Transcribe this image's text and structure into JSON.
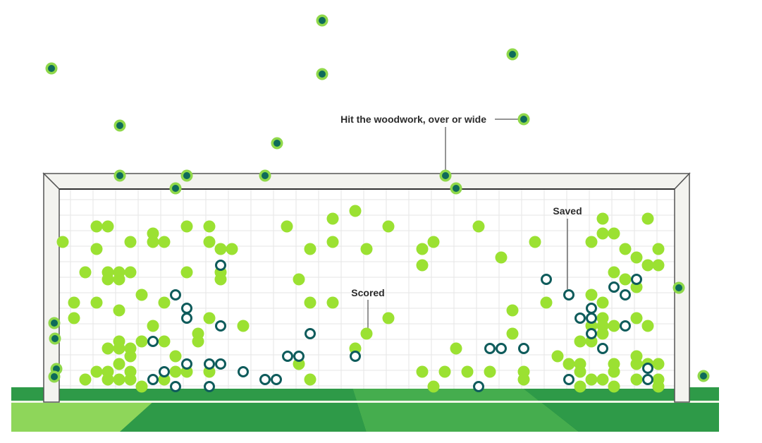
{
  "chart_data": {
    "type": "scatter",
    "colors": {
      "scored": "#9be132",
      "saved_stroke": "#0e5b5b",
      "missed_fill": "#0e6b5a",
      "missed_ring": "#8fd84a",
      "grass_light": "#8ed65a",
      "grass_dark": "#2e9a48",
      "net": "#e6e6e6",
      "post": "#f3f3ef",
      "annotation": "#2b2b2b"
    },
    "annotations": {
      "woodwork": "Hit the woodwork, over or wide",
      "saved": "Saved",
      "scored": "Scored"
    },
    "series": [
      {
        "outcome": "scored",
        "points": [
          [
            89,
            343
          ],
          [
            137,
            321
          ],
          [
            153,
            321
          ],
          [
            137,
            353
          ],
          [
            185,
            343
          ],
          [
            217,
            331
          ],
          [
            217,
            343
          ],
          [
            233,
            343
          ],
          [
            265,
            321
          ],
          [
            297,
            321
          ],
          [
            297,
            343
          ],
          [
            313,
            353
          ],
          [
            329,
            353
          ],
          [
            121,
            386
          ],
          [
            153,
            386
          ],
          [
            169,
            386
          ],
          [
            185,
            386
          ],
          [
            153,
            396
          ],
          [
            169,
            396
          ],
          [
            265,
            386
          ],
          [
            313,
            386
          ],
          [
            313,
            396
          ],
          [
            105,
            429
          ],
          [
            105,
            451
          ],
          [
            137,
            429
          ],
          [
            169,
            440
          ],
          [
            201,
            418
          ],
          [
            233,
            429
          ],
          [
            169,
            484
          ],
          [
            153,
            494
          ],
          [
            169,
            494
          ],
          [
            185,
            494
          ],
          [
            185,
            505
          ],
          [
            201,
            484
          ],
          [
            217,
            462
          ],
          [
            233,
            484
          ],
          [
            249,
            505
          ],
          [
            281,
            473
          ],
          [
            281,
            484
          ],
          [
            297,
            451
          ],
          [
            345,
            462
          ],
          [
            121,
            538
          ],
          [
            137,
            527
          ],
          [
            153,
            527
          ],
          [
            153,
            538
          ],
          [
            169,
            516
          ],
          [
            169,
            538
          ],
          [
            185,
            527
          ],
          [
            185,
            538
          ],
          [
            201,
            548
          ],
          [
            233,
            538
          ],
          [
            249,
            527
          ],
          [
            265,
            527
          ],
          [
            297,
            527
          ],
          [
            407,
            321
          ],
          [
            440,
            353
          ],
          [
            472,
            310
          ],
          [
            472,
            343
          ],
          [
            504,
            299
          ],
          [
            520,
            353
          ],
          [
            551,
            321
          ],
          [
            424,
            396
          ],
          [
            440,
            429
          ],
          [
            472,
            429
          ],
          [
            520,
            473
          ],
          [
            551,
            451
          ],
          [
            504,
            494
          ],
          [
            424,
            516
          ],
          [
            440,
            538
          ],
          [
            599,
            353
          ],
          [
            615,
            343
          ],
          [
            599,
            376
          ],
          [
            679,
            321
          ],
          [
            711,
            365
          ],
          [
            759,
            343
          ],
          [
            599,
            527
          ],
          [
            615,
            548
          ],
          [
            631,
            527
          ],
          [
            647,
            494
          ],
          [
            663,
            527
          ],
          [
            695,
            527
          ],
          [
            727,
            440
          ],
          [
            727,
            473
          ],
          [
            743,
            527
          ],
          [
            743,
            538
          ],
          [
            775,
            429
          ],
          [
            791,
            505
          ],
          [
            807,
            516
          ],
          [
            823,
            516
          ],
          [
            823,
            527
          ],
          [
            823,
            548
          ],
          [
            839,
            538
          ],
          [
            855,
            310
          ],
          [
            855,
            331
          ],
          [
            871,
            331
          ],
          [
            839,
            343
          ],
          [
            887,
            353
          ],
          [
            903,
            365
          ],
          [
            919,
            310
          ],
          [
            934,
            353
          ],
          [
            919,
            376
          ],
          [
            934,
            376
          ],
          [
            839,
            418
          ],
          [
            855,
            429
          ],
          [
            855,
            451
          ],
          [
            839,
            462
          ],
          [
            855,
            462
          ],
          [
            871,
            462
          ],
          [
            855,
            473
          ],
          [
            823,
            484
          ],
          [
            839,
            484
          ],
          [
            871,
            386
          ],
          [
            887,
            396
          ],
          [
            903,
            407
          ],
          [
            903,
            451
          ],
          [
            919,
            462
          ],
          [
            903,
            505
          ],
          [
            903,
            516
          ],
          [
            919,
            516
          ],
          [
            934,
            516
          ],
          [
            871,
            516
          ],
          [
            871,
            527
          ],
          [
            855,
            538
          ],
          [
            871,
            548
          ],
          [
            903,
            538
          ],
          [
            934,
            538
          ],
          [
            934,
            548
          ]
        ]
      },
      {
        "outcome": "saved",
        "points": [
          [
            313,
            376
          ],
          [
            249,
            418
          ],
          [
            265,
            437
          ],
          [
            265,
            451
          ],
          [
            313,
            462
          ],
          [
            217,
            484
          ],
          [
            265,
            516
          ],
          [
            297,
            516
          ],
          [
            313,
            516
          ],
          [
            233,
            527
          ],
          [
            217,
            538
          ],
          [
            249,
            548
          ],
          [
            297,
            548
          ],
          [
            345,
            527
          ],
          [
            376,
            538
          ],
          [
            392,
            538
          ],
          [
            408,
            505
          ],
          [
            424,
            505
          ],
          [
            440,
            473
          ],
          [
            504,
            505
          ],
          [
            695,
            494
          ],
          [
            711,
            494
          ],
          [
            743,
            494
          ],
          [
            679,
            548
          ],
          [
            775,
            396
          ],
          [
            807,
            418
          ],
          [
            823,
            451
          ],
          [
            839,
            437
          ],
          [
            839,
            451
          ],
          [
            839,
            473
          ],
          [
            871,
            407
          ],
          [
            887,
            418
          ],
          [
            903,
            396
          ],
          [
            855,
            494
          ],
          [
            887,
            462
          ],
          [
            919,
            522
          ],
          [
            919,
            538
          ],
          [
            807,
            538
          ]
        ]
      },
      {
        "outcome": "missed",
        "points": [
          [
            457,
            29
          ],
          [
            73,
            97
          ],
          [
            727,
            77
          ],
          [
            457,
            105
          ],
          [
            170,
            178
          ],
          [
            743,
            169
          ],
          [
            393,
            203
          ],
          [
            170,
            249
          ],
          [
            265,
            249
          ],
          [
            376,
            249
          ],
          [
            632,
            249
          ],
          [
            249,
            267
          ],
          [
            647,
            267
          ],
          [
            77,
            458
          ],
          [
            78,
            480
          ],
          [
            80,
            523
          ],
          [
            77,
            534
          ],
          [
            963,
            408
          ],
          [
            998,
            533
          ]
        ]
      }
    ]
  }
}
